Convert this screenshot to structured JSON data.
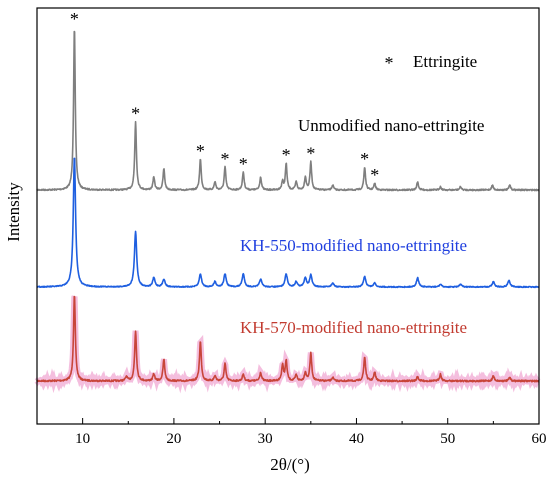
{
  "chart_data": {
    "type": "line",
    "xlabel": "2θ/(°)",
    "ylabel": "Intensity",
    "xlim": [
      5,
      60
    ],
    "xticks": [
      10,
      20,
      30,
      40,
      50,
      60
    ],
    "grid": false,
    "legend": {
      "placement": "top-right",
      "marker": "*",
      "label": "Ettringite"
    },
    "colors": {
      "Unmodified": "#7f7f7f",
      "KH550": "#1f5fe0",
      "KH570": "#c8453a",
      "KH570_shadow": "#f2b3d8"
    },
    "series": [
      {
        "key": "Unmodified",
        "name": "Unmodified nano-ettringite",
        "peaks": [
          [
            9.1,
            1.0
          ],
          [
            15.8,
            0.42
          ],
          [
            17.8,
            0.08
          ],
          [
            18.9,
            0.13
          ],
          [
            22.9,
            0.19
          ],
          [
            24.5,
            0.05
          ],
          [
            25.6,
            0.14
          ],
          [
            27.6,
            0.11
          ],
          [
            29.5,
            0.08
          ],
          [
            31.9,
            0.05
          ],
          [
            32.3,
            0.16
          ],
          [
            33.4,
            0.05
          ],
          [
            34.4,
            0.08
          ],
          [
            35.0,
            0.17
          ],
          [
            37.4,
            0.03
          ],
          [
            40.9,
            0.14
          ],
          [
            42.0,
            0.04
          ],
          [
            46.7,
            0.05
          ],
          [
            49.2,
            0.02
          ],
          [
            51.4,
            0.02
          ],
          [
            54.9,
            0.03
          ],
          [
            56.8,
            0.03
          ]
        ]
      },
      {
        "key": "KH550",
        "name": "KH-550-modified nano-ettringite",
        "peaks": [
          [
            9.1,
            1.0
          ],
          [
            15.8,
            0.42
          ],
          [
            17.8,
            0.07
          ],
          [
            18.9,
            0.06
          ],
          [
            22.9,
            0.1
          ],
          [
            24.5,
            0.04
          ],
          [
            25.6,
            0.1
          ],
          [
            27.6,
            0.1
          ],
          [
            29.5,
            0.06
          ],
          [
            32.3,
            0.1
          ],
          [
            33.4,
            0.04
          ],
          [
            34.4,
            0.07
          ],
          [
            35.0,
            0.09
          ],
          [
            37.4,
            0.03
          ],
          [
            40.9,
            0.08
          ],
          [
            42.0,
            0.03
          ],
          [
            46.7,
            0.07
          ],
          [
            49.2,
            0.02
          ],
          [
            51.4,
            0.02
          ],
          [
            55.0,
            0.04
          ],
          [
            56.7,
            0.05
          ]
        ]
      },
      {
        "key": "KH570",
        "name": "KH-570-modified nano-ettringite",
        "peaks": [
          [
            9.1,
            1.0
          ],
          [
            14.8,
            0.05
          ],
          [
            15.8,
            0.58
          ],
          [
            17.8,
            0.08
          ],
          [
            18.9,
            0.25
          ],
          [
            22.9,
            0.46
          ],
          [
            24.5,
            0.06
          ],
          [
            25.6,
            0.2
          ],
          [
            27.6,
            0.08
          ],
          [
            29.5,
            0.1
          ],
          [
            31.9,
            0.18
          ],
          [
            32.3,
            0.23
          ],
          [
            33.4,
            0.07
          ],
          [
            34.4,
            0.1
          ],
          [
            35.0,
            0.32
          ],
          [
            37.4,
            0.04
          ],
          [
            40.9,
            0.28
          ],
          [
            42.0,
            0.1
          ],
          [
            46.7,
            0.05
          ],
          [
            49.2,
            0.08
          ],
          [
            55.0,
            0.06
          ],
          [
            56.8,
            0.04
          ]
        ]
      }
    ],
    "ettringite_markers": [
      9.1,
      15.8,
      22.9,
      25.6,
      27.6,
      32.3,
      35.0,
      40.9,
      42.0
    ]
  }
}
